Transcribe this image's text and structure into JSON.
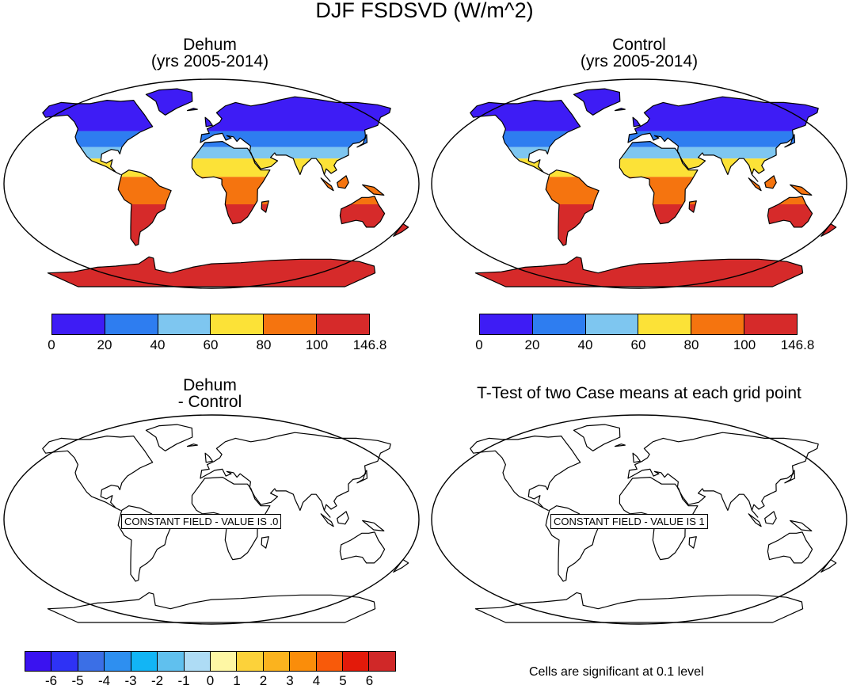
{
  "title": "DJF FSDSVD (W/m^2)",
  "panels": {
    "dehum": {
      "title_line1": "Dehum",
      "title_line2": "(yrs 2005-2014)"
    },
    "control": {
      "title_line1": "Control",
      "title_line2": "(yrs 2005-2014)"
    },
    "diff": {
      "title_line1": "Dehum",
      "title_line2": "- Control",
      "label": "CONSTANT FIELD - VALUE IS .0"
    },
    "ttest": {
      "title": "T-Test of two Case means at each grid point",
      "label": "CONSTANT FIELD - VALUE IS 1"
    }
  },
  "colorbar_abs": {
    "colors": [
      "#3e1cf5",
      "#2e7df0",
      "#7ec6f0",
      "#fce237",
      "#f5740f",
      "#d62a2a"
    ],
    "labels": [
      "0",
      "20",
      "40",
      "60",
      "80",
      "100",
      "146.8"
    ]
  },
  "colorbar_diff": {
    "colors": [
      "#3a12f0",
      "#2e32f5",
      "#3b6fe6",
      "#2e8ff0",
      "#12b5f5",
      "#60c0ee",
      "#aedcf5",
      "#fef7a4",
      "#fcd23a",
      "#fbb31e",
      "#fa8d0a",
      "#f85a0a",
      "#e31a0a",
      "#d02828"
    ],
    "labels": [
      "-6",
      "-5",
      "-4",
      "-3",
      "-2",
      "-1",
      "0",
      "1",
      "2",
      "3",
      "4",
      "5",
      "6"
    ]
  },
  "note": "Cells are significant at 0.1 level",
  "colors": {
    "ocean": "#ffffff",
    "outline": "#000000"
  }
}
